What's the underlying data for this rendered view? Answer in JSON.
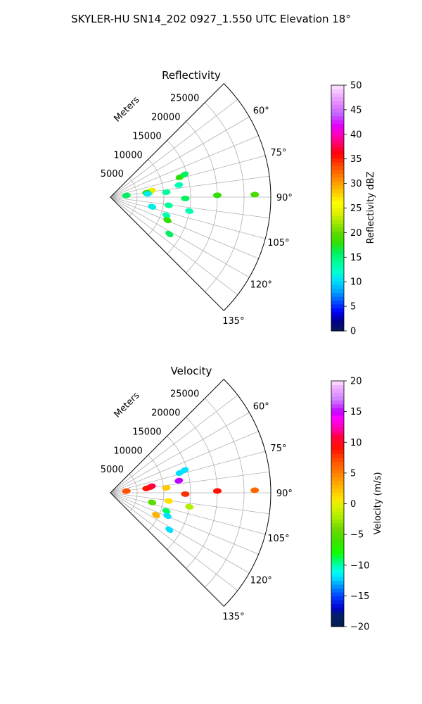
{
  "figure": {
    "suptitle": "SKYLER-HU  SN14_202  0927_1.550 UTC Elevation 18°"
  },
  "chart_data": [
    {
      "type": "polar-sector",
      "title": "Reflectivity",
      "range_label": "Meters",
      "range_ticks": [
        5000,
        10000,
        15000,
        20000,
        25000
      ],
      "range_tick_labels": [
        "5000",
        "10000",
        "15000",
        "20000",
        "25000"
      ],
      "rmax": 30000,
      "azimuth_ticks": [
        60,
        75,
        90,
        105,
        120,
        135
      ],
      "azimuth_tick_labels": [
        "60°",
        "75°",
        "90°",
        "105°",
        "120°",
        "135°"
      ],
      "azimuth_range": [
        45,
        135
      ],
      "colorbar": {
        "label": "Reflectivity dBZ",
        "min": 0,
        "max": 50,
        "ticks": [
          0,
          5,
          10,
          15,
          20,
          25,
          30,
          35,
          40,
          45,
          50
        ],
        "tick_labels": [
          "0",
          "5",
          "10",
          "15",
          "20",
          "25",
          "30",
          "35",
          "40",
          "45",
          "50"
        ]
      },
      "cells": [
        {
          "az": 82,
          "r": 7500,
          "value": 20
        },
        {
          "az": 81,
          "r": 7800,
          "value": 24
        },
        {
          "az": 83,
          "r": 6800,
          "value": 18
        },
        {
          "az": 74,
          "r": 13500,
          "value": 18
        },
        {
          "az": 73,
          "r": 14500,
          "value": 16
        },
        {
          "az": 85,
          "r": 7000,
          "value": 11
        },
        {
          "az": 80,
          "r": 13000,
          "value": 13
        },
        {
          "az": 85,
          "r": 10500,
          "value": 14
        },
        {
          "az": 84,
          "r": 3000,
          "value": 16
        },
        {
          "az": 89,
          "r": 27000,
          "value": 19
        },
        {
          "az": 89,
          "r": 20000,
          "value": 18
        },
        {
          "az": 91,
          "r": 14000,
          "value": 16
        },
        {
          "az": 98,
          "r": 11000,
          "value": 14
        },
        {
          "az": 100,
          "r": 15000,
          "value": 13
        },
        {
          "az": 103,
          "r": 8000,
          "value": 11
        },
        {
          "az": 108,
          "r": 11000,
          "value": 13
        },
        {
          "az": 112,
          "r": 11500,
          "value": 18
        },
        {
          "az": 122,
          "r": 13000,
          "value": 16
        }
      ]
    },
    {
      "type": "polar-sector",
      "title": "Velocity",
      "range_label": "Meters",
      "range_ticks": [
        5000,
        10000,
        15000,
        20000,
        25000
      ],
      "range_tick_labels": [
        "5000",
        "10000",
        "15000",
        "20000",
        "25000"
      ],
      "rmax": 30000,
      "azimuth_ticks": [
        60,
        75,
        90,
        105,
        120,
        135
      ],
      "azimuth_tick_labels": [
        "60°",
        "75°",
        "90°",
        "105°",
        "120°",
        "135°"
      ],
      "azimuth_range": [
        45,
        135
      ],
      "colorbar": {
        "label": "Velocity (m/s)",
        "min": -20,
        "max": 20,
        "ticks": [
          -20,
          -15,
          -10,
          -5,
          0,
          5,
          10,
          15,
          20
        ],
        "tick_labels": [
          "−20",
          "−15",
          "−10",
          "−5",
          "0",
          "5",
          "10",
          "15",
          "20"
        ]
      },
      "cells": [
        {
          "az": 82,
          "r": 7500,
          "value": 10
        },
        {
          "az": 81,
          "r": 7800,
          "value": 11
        },
        {
          "az": 83,
          "r": 6800,
          "value": 9
        },
        {
          "az": 74,
          "r": 13500,
          "value": -12
        },
        {
          "az": 73,
          "r": 14500,
          "value": -12
        },
        {
          "az": 85,
          "r": 10500,
          "value": 2
        },
        {
          "az": 84,
          "r": 3000,
          "value": 7
        },
        {
          "az": 80,
          "r": 13000,
          "value": 15
        },
        {
          "az": 89,
          "r": 27000,
          "value": 6
        },
        {
          "az": 89,
          "r": 20000,
          "value": 9
        },
        {
          "az": 91,
          "r": 14000,
          "value": 8
        },
        {
          "az": 98,
          "r": 11000,
          "value": 1
        },
        {
          "az": 100,
          "r": 15000,
          "value": -2
        },
        {
          "az": 103,
          "r": 8000,
          "value": -5
        },
        {
          "az": 108,
          "r": 11000,
          "value": -9
        },
        {
          "az": 112,
          "r": 11500,
          "value": -12
        },
        {
          "az": 122,
          "r": 13000,
          "value": -12
        },
        {
          "az": 116,
          "r": 9500,
          "value": 3
        }
      ]
    }
  ]
}
